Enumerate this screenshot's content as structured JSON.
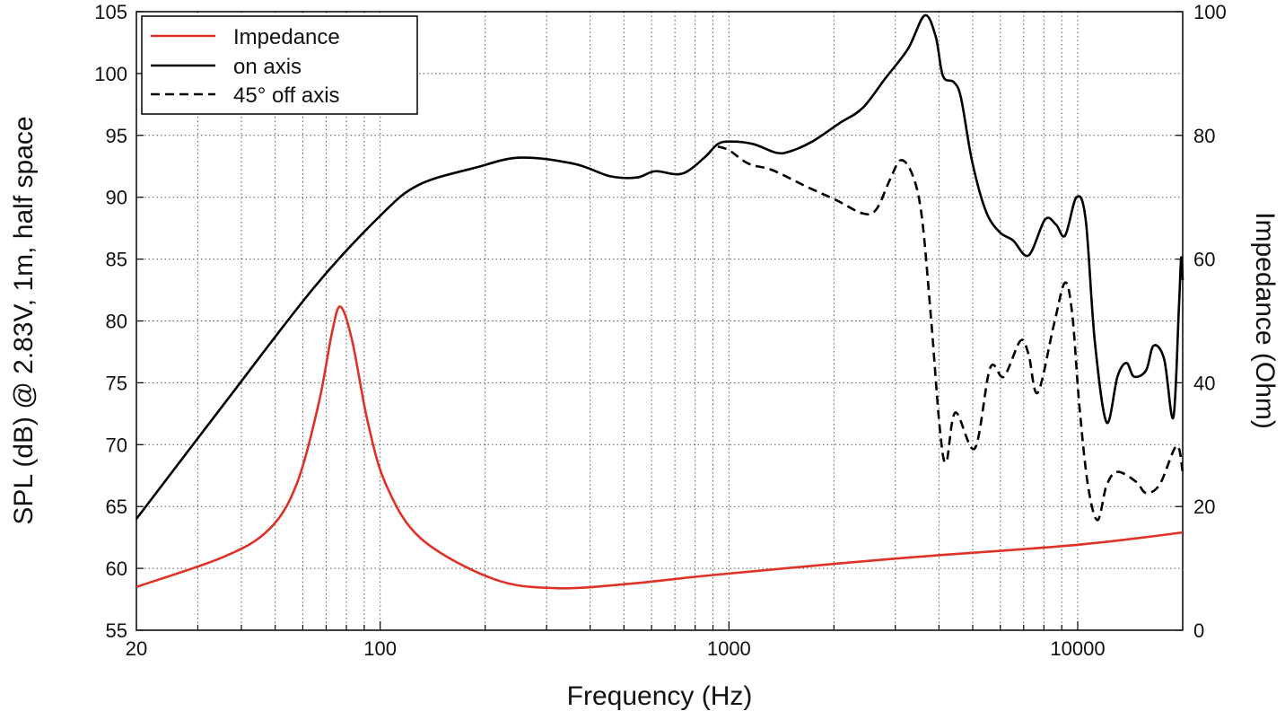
{
  "chart_data": {
    "type": "line",
    "xlabel": "Frequency (Hz)",
    "ylabel": "SPL (dB) @ 2.83V, 1m, half space",
    "y2label": "Impedance (Ohm)",
    "xscale": "log",
    "xlim": [
      20,
      20000
    ],
    "ylim": [
      55,
      105
    ],
    "y2lim": [
      0,
      100
    ],
    "grid": true,
    "legend_position": "top-left",
    "x_ticks": [
      "20",
      "100",
      "1000",
      "10000"
    ],
    "y_ticks": [
      "55",
      "60",
      "65",
      "70",
      "75",
      "80",
      "85",
      "90",
      "95",
      "100",
      "105"
    ],
    "y2_ticks": [
      "0",
      "20",
      "40",
      "60",
      "80",
      "100"
    ],
    "series": [
      {
        "name": "Impedance",
        "axis": "right",
        "color": "#e03127",
        "style": "solid",
        "points": [
          [
            20,
            7.0
          ],
          [
            35.7,
            11.9
          ],
          [
            48,
            16.3
          ],
          [
            57.5,
            23.5
          ],
          [
            66.6,
            36.6
          ],
          [
            72.8,
            48.2
          ],
          [
            77,
            52.3
          ],
          [
            83.2,
            46.7
          ],
          [
            92.1,
            33.7
          ],
          [
            104,
            23.5
          ],
          [
            131,
            14.8
          ],
          [
            211,
            8.3
          ],
          [
            320,
            6.8
          ],
          [
            517,
            7.5
          ],
          [
            929,
            9.0
          ],
          [
            3030,
            11.6
          ],
          [
            9940,
            13.8
          ],
          [
            20000,
            15.8
          ]
        ]
      },
      {
        "name": "on axis",
        "axis": "left",
        "color": "#000000",
        "style": "solid",
        "points": [
          [
            20,
            64.0
          ],
          [
            35.7,
            73.3
          ],
          [
            64.6,
            82.7
          ],
          [
            100,
            88.5
          ],
          [
            129,
            91.0
          ],
          [
            188,
            92.4
          ],
          [
            252,
            93.2
          ],
          [
            360,
            92.7
          ],
          [
            456,
            91.7
          ],
          [
            545,
            91.6
          ],
          [
            614,
            92.1
          ],
          [
            733,
            91.9
          ],
          [
            850,
            93.2
          ],
          [
            929,
            94.3
          ],
          [
            1015,
            94.5
          ],
          [
            1174,
            94.3
          ],
          [
            1366,
            93.6
          ],
          [
            1494,
            93.7
          ],
          [
            1733,
            94.5
          ],
          [
            2078,
            96.0
          ],
          [
            2414,
            97.2
          ],
          [
            2806,
            99.6
          ],
          [
            3262,
            102.0
          ],
          [
            3640,
            104.7
          ],
          [
            3915,
            103.0
          ],
          [
            4108,
            99.8
          ],
          [
            4416,
            99.3
          ],
          [
            4630,
            98.0
          ],
          [
            4980,
            92.9
          ],
          [
            5450,
            88.9
          ],
          [
            5960,
            87.2
          ],
          [
            6530,
            86.5
          ],
          [
            7230,
            85.3
          ],
          [
            8060,
            88.2
          ],
          [
            8660,
            87.8
          ],
          [
            9200,
            86.9
          ],
          [
            9920,
            90.0
          ],
          [
            10540,
            88.2
          ],
          [
            11190,
            78.4
          ],
          [
            12100,
            71.8
          ],
          [
            13000,
            75.5
          ],
          [
            13800,
            76.6
          ],
          [
            14500,
            75.5
          ],
          [
            15700,
            76.0
          ],
          [
            16500,
            78.0
          ],
          [
            17700,
            76.9
          ],
          [
            18800,
            72.2
          ],
          [
            19500,
            81.0
          ],
          [
            19800,
            85.1
          ],
          [
            20000,
            83.3
          ]
        ]
      },
      {
        "name": "45° off axis",
        "axis": "left",
        "color": "#000000",
        "style": "dashed",
        "points": [
          [
            929,
            94.1
          ],
          [
            1000,
            93.8
          ],
          [
            1140,
            92.7
          ],
          [
            1330,
            92.2
          ],
          [
            1685,
            90.8
          ],
          [
            2020,
            89.8
          ],
          [
            2414,
            88.7
          ],
          [
            2643,
            89.0
          ],
          [
            2893,
            91.4
          ],
          [
            3110,
            93.0
          ],
          [
            3360,
            91.8
          ],
          [
            3570,
            88.5
          ],
          [
            3790,
            80.5
          ],
          [
            4030,
            71.1
          ],
          [
            4200,
            68.6
          ],
          [
            4460,
            72.6
          ],
          [
            5070,
            69.7
          ],
          [
            5610,
            76.2
          ],
          [
            6140,
            75.5
          ],
          [
            6850,
            78.4
          ],
          [
            7230,
            77.3
          ],
          [
            7680,
            74.2
          ],
          [
            8560,
            79.8
          ],
          [
            9200,
            83.1
          ],
          [
            9650,
            80.5
          ],
          [
            10100,
            73.3
          ],
          [
            10700,
            66.7
          ],
          [
            11400,
            63.9
          ],
          [
            12100,
            66.7
          ],
          [
            13000,
            67.8
          ],
          [
            14700,
            67.0
          ],
          [
            15700,
            66.1
          ],
          [
            17200,
            66.8
          ],
          [
            19200,
            69.9
          ],
          [
            20000,
            67.8
          ]
        ]
      }
    ]
  }
}
